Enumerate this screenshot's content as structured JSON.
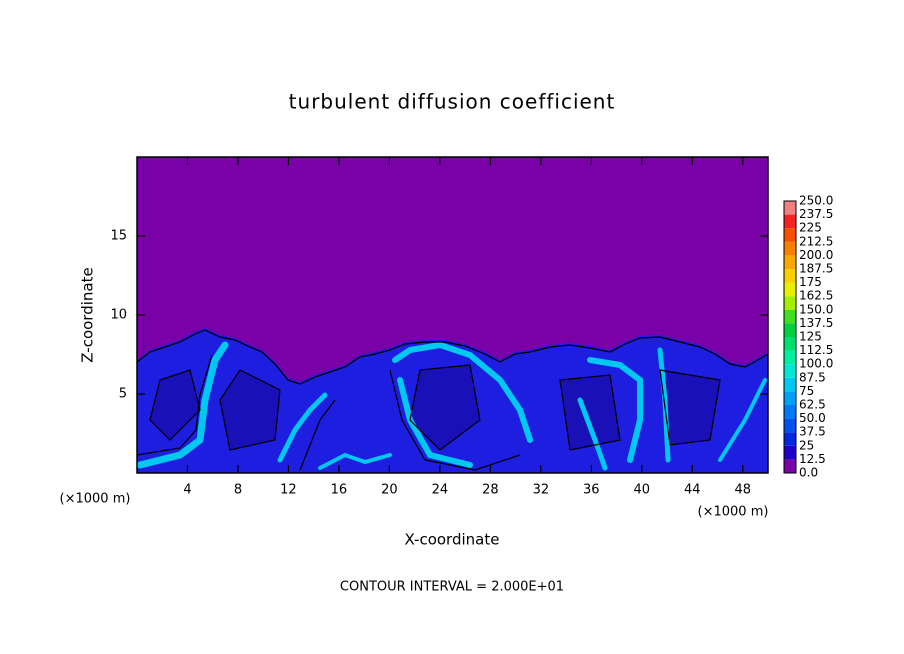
{
  "chart_data": {
    "type": "contour",
    "title": "turbulent diffusion coefficient",
    "xlabel": "X-coordinate",
    "ylabel": "Z-coordinate",
    "x_unit_label": "(×1000 m)",
    "footnote": "CONTOUR INTERVAL = 2.000E+01",
    "xlim": [
      0,
      50
    ],
    "ylim": [
      0,
      20
    ],
    "xticks": [
      4,
      8,
      12,
      16,
      20,
      24,
      28,
      32,
      36,
      40,
      44,
      48
    ],
    "yticks": [
      5,
      10,
      15
    ],
    "colorbar": {
      "levels": [
        {
          "value": 0,
          "label": "0.0"
        },
        12.5,
        25,
        37.5,
        {
          "value": 50,
          "label": "50.0"
        },
        62.5,
        75,
        87.5,
        {
          "value": 100,
          "label": "100.0"
        },
        112.5,
        125,
        137.5,
        {
          "value": 150,
          "label": "150.0"
        },
        162.5,
        175,
        187.5,
        {
          "value": 200,
          "label": "200.0"
        },
        212.5,
        225,
        237.5,
        {
          "value": 250,
          "label": "250.0"
        }
      ],
      "colors": [
        "#7a00a8",
        "#1e00c8",
        "#0028e0",
        "#0050f0",
        "#0078f8",
        "#00a0f8",
        "#00c8f0",
        "#00e8d0",
        "#00f0a0",
        "#00e070",
        "#00d040",
        "#40e020",
        "#a0f000",
        "#e8f000",
        "#f8d000",
        "#f8a800",
        "#f88000",
        "#f85000",
        "#f82020",
        "#f08080"
      ]
    }
  }
}
